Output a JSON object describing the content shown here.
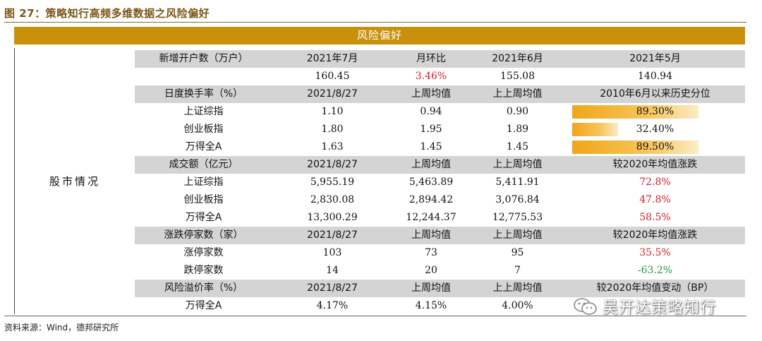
{
  "figure": {
    "title": "图 27：策略知行高频多维数据之风险偏好",
    "banner": "风险偏好",
    "section_label": "股市情况",
    "source": "资料来源：Wind，德邦研究所",
    "watermark": "吴开达策略知行"
  },
  "rows": [
    {
      "type": "header",
      "cells": [
        "新增开户数（万户）",
        "2021年7月",
        "月环比",
        "2021年6月",
        "2021年5月"
      ]
    },
    {
      "type": "data",
      "cells": [
        "",
        "160.45",
        "3.46%",
        "155.08",
        "140.94"
      ],
      "colors": [
        "",
        "",
        "red",
        "",
        ""
      ]
    },
    {
      "type": "header",
      "cells": [
        "日度换手率（%）",
        "2021/8/27",
        "上周均值",
        "上上周均值",
        "2010年6月以来历史分位"
      ]
    },
    {
      "type": "data",
      "cells": [
        "上证综指",
        "1.10",
        "0.94",
        "0.90",
        "89.30%"
      ],
      "percentile": 0.893
    },
    {
      "type": "data",
      "cells": [
        "创业板指",
        "1.80",
        "1.95",
        "1.89",
        "32.40%"
      ],
      "percentile": 0.324
    },
    {
      "type": "data",
      "cells": [
        "万得全A",
        "1.63",
        "1.45",
        "1.45",
        "89.50%"
      ],
      "percentile": 0.895
    },
    {
      "type": "header",
      "cells": [
        "成交额（亿元）",
        "2021/8/27",
        "上周均值",
        "上上周均值",
        "较2020年均值涨跌"
      ]
    },
    {
      "type": "data",
      "cells": [
        "上证综指",
        "5,955.19",
        "5,463.89",
        "5,411.91",
        "72.8%"
      ],
      "colors": [
        "",
        "",
        "",
        "",
        "red"
      ]
    },
    {
      "type": "data",
      "cells": [
        "创业板指",
        "2,830.08",
        "2,894.42",
        "3,076.84",
        "47.8%"
      ],
      "colors": [
        "",
        "",
        "",
        "",
        "red"
      ]
    },
    {
      "type": "data",
      "cells": [
        "万得全A",
        "13,300.29",
        "12,244.37",
        "12,775.53",
        "58.5%"
      ],
      "colors": [
        "",
        "",
        "",
        "",
        "red"
      ]
    },
    {
      "type": "header",
      "cells": [
        "涨跌停家数（家）",
        "2021/8/27",
        "上周均值",
        "上上周均值",
        "较2020年均值涨跌"
      ]
    },
    {
      "type": "data",
      "cells": [
        "涨停家数",
        "103",
        "73",
        "95",
        "35.5%"
      ],
      "colors": [
        "",
        "",
        "",
        "",
        "red"
      ]
    },
    {
      "type": "data",
      "cells": [
        "跌停家数",
        "14",
        "20",
        "7",
        "-63.2%"
      ],
      "colors": [
        "",
        "",
        "",
        "",
        "green"
      ]
    },
    {
      "type": "header",
      "cells": [
        "风险溢价率（%）",
        "2021/8/27",
        "上周均值",
        "上上周均值",
        "较2020年均值变动（BP）"
      ]
    },
    {
      "type": "data",
      "cells": [
        "万得全A",
        "4.17%",
        "4.15%",
        "4.00%",
        ""
      ]
    }
  ]
}
